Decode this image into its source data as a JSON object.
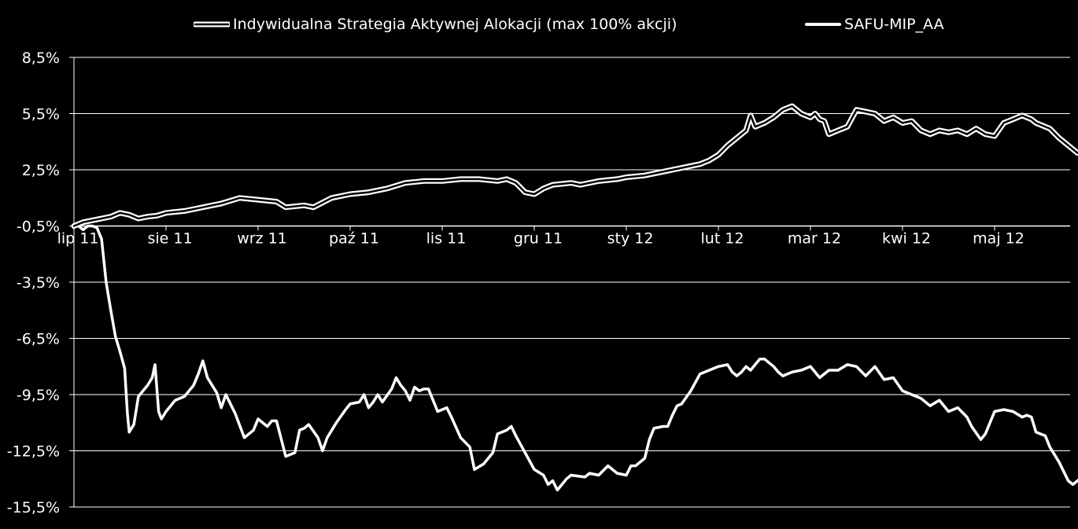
{
  "chart_data": {
    "type": "line",
    "title": "",
    "xlabel": "",
    "ylabel": "",
    "ylim": [
      -15.5,
      8.5
    ],
    "yticks": [
      "8,5%",
      "5,5%",
      "2,5%",
      "-0,5%",
      "-3,5%",
      "-6,5%",
      "-9,5%",
      "-12,5%",
      "-15,5%"
    ],
    "ytick_values": [
      8.5,
      5.5,
      2.5,
      -0.5,
      -3.5,
      -6.5,
      -9.5,
      -12.5,
      -15.5
    ],
    "xticks": [
      "lip 11",
      "sie 11",
      "wrz 11",
      "paź 11",
      "lis 11",
      "gru 11",
      "sty 12",
      "lut 12",
      "mar 12",
      "kwi 12",
      "maj 12"
    ],
    "x_axis_at": -0.5,
    "grid": "horizontal",
    "legend_position": "top",
    "background": "#000000",
    "series": [
      {
        "name": "Indywidualna Strategia Aktywnej Alokacji (max 100% akcji)",
        "style": "double-outline",
        "color": "#ffffff",
        "points": [
          [
            0.0,
            -0.5
          ],
          [
            0.1,
            -0.3
          ],
          [
            0.2,
            -0.2
          ],
          [
            0.3,
            -0.1
          ],
          [
            0.4,
            0.0
          ],
          [
            0.5,
            0.2
          ],
          [
            0.6,
            0.1
          ],
          [
            0.7,
            -0.1
          ],
          [
            0.8,
            0.0
          ],
          [
            0.9,
            0.05
          ],
          [
            1.0,
            0.2
          ],
          [
            1.2,
            0.3
          ],
          [
            1.4,
            0.5
          ],
          [
            1.6,
            0.7
          ],
          [
            1.8,
            1.0
          ],
          [
            2.0,
            0.9
          ],
          [
            2.2,
            0.8
          ],
          [
            2.3,
            0.5
          ],
          [
            2.5,
            0.6
          ],
          [
            2.6,
            0.5
          ],
          [
            2.8,
            1.0
          ],
          [
            3.0,
            1.2
          ],
          [
            3.2,
            1.3
          ],
          [
            3.4,
            1.5
          ],
          [
            3.6,
            1.8
          ],
          [
            3.8,
            1.9
          ],
          [
            4.0,
            1.9
          ],
          [
            4.2,
            2.0
          ],
          [
            4.4,
            2.0
          ],
          [
            4.6,
            1.9
          ],
          [
            4.7,
            2.0
          ],
          [
            4.8,
            1.8
          ],
          [
            4.9,
            1.3
          ],
          [
            5.0,
            1.2
          ],
          [
            5.1,
            1.5
          ],
          [
            5.2,
            1.7
          ],
          [
            5.4,
            1.8
          ],
          [
            5.5,
            1.7
          ],
          [
            5.7,
            1.9
          ],
          [
            5.9,
            2.0
          ],
          [
            6.0,
            2.1
          ],
          [
            6.2,
            2.2
          ],
          [
            6.4,
            2.4
          ],
          [
            6.6,
            2.6
          ],
          [
            6.8,
            2.8
          ],
          [
            6.9,
            3.0
          ],
          [
            7.0,
            3.3
          ],
          [
            7.1,
            3.8
          ],
          [
            7.2,
            4.2
          ],
          [
            7.3,
            4.6
          ],
          [
            7.35,
            5.4
          ],
          [
            7.4,
            4.8
          ],
          [
            7.5,
            5.0
          ],
          [
            7.6,
            5.3
          ],
          [
            7.7,
            5.7
          ],
          [
            7.8,
            5.9
          ],
          [
            7.9,
            5.5
          ],
          [
            8.0,
            5.3
          ],
          [
            8.05,
            5.5
          ],
          [
            8.1,
            5.2
          ],
          [
            8.15,
            5.1
          ],
          [
            8.2,
            4.4
          ],
          [
            8.3,
            4.6
          ],
          [
            8.4,
            4.8
          ],
          [
            8.5,
            5.7
          ],
          [
            8.6,
            5.6
          ],
          [
            8.7,
            5.5
          ],
          [
            8.8,
            5.1
          ],
          [
            8.9,
            5.3
          ],
          [
            9.0,
            5.0
          ],
          [
            9.1,
            5.1
          ],
          [
            9.2,
            4.6
          ],
          [
            9.3,
            4.4
          ],
          [
            9.4,
            4.6
          ],
          [
            9.5,
            4.5
          ],
          [
            9.6,
            4.6
          ],
          [
            9.7,
            4.4
          ],
          [
            9.8,
            4.7
          ],
          [
            9.9,
            4.4
          ],
          [
            10.0,
            4.3
          ],
          [
            10.1,
            5.0
          ],
          [
            10.2,
            5.2
          ],
          [
            10.3,
            5.4
          ],
          [
            10.4,
            5.2
          ],
          [
            10.45,
            5.0
          ],
          [
            10.6,
            4.7
          ],
          [
            10.7,
            4.2
          ],
          [
            10.8,
            3.8
          ],
          [
            10.9,
            3.4
          ],
          [
            11.0,
            3.6
          ],
          [
            11.05,
            3.9
          ],
          [
            11.1,
            3.4
          ],
          [
            11.2,
            3.5
          ],
          [
            11.3,
            3.8
          ],
          [
            11.35,
            4.0
          ],
          [
            11.45,
            3.7
          ],
          [
            11.5,
            3.8
          ]
        ]
      },
      {
        "name": "SAFU-MIP_AA",
        "style": "solid",
        "color": "#ffffff",
        "points": [
          [
            0.0,
            -0.5
          ],
          [
            0.05,
            -0.5
          ],
          [
            0.1,
            -0.7
          ],
          [
            0.15,
            -0.5
          ],
          [
            0.2,
            -0.5
          ],
          [
            0.25,
            -0.6
          ],
          [
            0.3,
            -1.2
          ],
          [
            0.35,
            -3.5
          ],
          [
            0.4,
            -5.0
          ],
          [
            0.45,
            -6.4
          ],
          [
            0.5,
            -7.2
          ],
          [
            0.55,
            -8.1
          ],
          [
            0.58,
            -10.5
          ],
          [
            0.6,
            -11.5
          ],
          [
            0.65,
            -11.1
          ],
          [
            0.7,
            -9.6
          ],
          [
            0.8,
            -9.0
          ],
          [
            0.85,
            -8.6
          ],
          [
            0.88,
            -7.9
          ],
          [
            0.92,
            -10.4
          ],
          [
            0.95,
            -10.8
          ],
          [
            1.0,
            -10.4
          ],
          [
            1.1,
            -9.8
          ],
          [
            1.2,
            -9.6
          ],
          [
            1.3,
            -9.0
          ],
          [
            1.35,
            -8.4
          ],
          [
            1.4,
            -7.7
          ],
          [
            1.45,
            -8.6
          ],
          [
            1.55,
            -9.4
          ],
          [
            1.6,
            -10.2
          ],
          [
            1.65,
            -9.5
          ],
          [
            1.75,
            -10.5
          ],
          [
            1.85,
            -11.8
          ],
          [
            1.95,
            -11.4
          ],
          [
            2.0,
            -10.8
          ],
          [
            2.1,
            -11.2
          ],
          [
            2.15,
            -10.9
          ],
          [
            2.2,
            -10.9
          ],
          [
            2.3,
            -12.8
          ],
          [
            2.4,
            -12.6
          ],
          [
            2.45,
            -11.4
          ],
          [
            2.5,
            -11.3
          ],
          [
            2.55,
            -11.1
          ],
          [
            2.65,
            -11.8
          ],
          [
            2.7,
            -12.5
          ],
          [
            2.75,
            -11.8
          ],
          [
            2.85,
            -11.0
          ],
          [
            2.95,
            -10.3
          ],
          [
            3.0,
            -10.0
          ],
          [
            3.1,
            -9.9
          ],
          [
            3.15,
            -9.5
          ],
          [
            3.2,
            -10.2
          ],
          [
            3.25,
            -9.9
          ],
          [
            3.3,
            -9.5
          ],
          [
            3.35,
            -9.9
          ],
          [
            3.45,
            -9.2
          ],
          [
            3.5,
            -8.6
          ],
          [
            3.55,
            -9.0
          ],
          [
            3.6,
            -9.3
          ],
          [
            3.65,
            -9.8
          ],
          [
            3.7,
            -9.1
          ],
          [
            3.75,
            -9.3
          ],
          [
            3.8,
            -9.2
          ],
          [
            3.85,
            -9.2
          ],
          [
            3.95,
            -10.4
          ],
          [
            4.05,
            -10.2
          ],
          [
            4.1,
            -10.7
          ],
          [
            4.2,
            -11.8
          ],
          [
            4.3,
            -12.3
          ],
          [
            4.35,
            -13.5
          ],
          [
            4.45,
            -13.2
          ],
          [
            4.55,
            -12.6
          ],
          [
            4.6,
            -11.6
          ],
          [
            4.7,
            -11.4
          ],
          [
            4.75,
            -11.2
          ],
          [
            4.8,
            -11.7
          ],
          [
            4.9,
            -12.6
          ],
          [
            5.0,
            -13.5
          ],
          [
            5.1,
            -13.8
          ],
          [
            5.15,
            -14.3
          ],
          [
            5.2,
            -14.1
          ],
          [
            5.25,
            -14.6
          ],
          [
            5.35,
            -14.0
          ],
          [
            5.4,
            -13.8
          ],
          [
            5.55,
            -13.9
          ],
          [
            5.6,
            -13.7
          ],
          [
            5.7,
            -13.8
          ],
          [
            5.8,
            -13.3
          ],
          [
            5.9,
            -13.7
          ],
          [
            6.0,
            -13.8
          ],
          [
            6.05,
            -13.3
          ],
          [
            6.1,
            -13.3
          ],
          [
            6.2,
            -12.9
          ],
          [
            6.25,
            -11.9
          ],
          [
            6.3,
            -11.3
          ],
          [
            6.4,
            -11.2
          ],
          [
            6.45,
            -11.2
          ],
          [
            6.5,
            -10.6
          ],
          [
            6.55,
            -10.1
          ],
          [
            6.6,
            -10.0
          ],
          [
            6.7,
            -9.3
          ],
          [
            6.8,
            -8.4
          ],
          [
            6.9,
            -8.2
          ],
          [
            7.0,
            -8.0
          ],
          [
            7.1,
            -7.9
          ],
          [
            7.15,
            -8.3
          ],
          [
            7.2,
            -8.5
          ],
          [
            7.25,
            -8.3
          ],
          [
            7.3,
            -8.0
          ],
          [
            7.35,
            -8.2
          ],
          [
            7.45,
            -7.6
          ],
          [
            7.5,
            -7.6
          ],
          [
            7.6,
            -8.0
          ],
          [
            7.65,
            -8.3
          ],
          [
            7.7,
            -8.5
          ],
          [
            7.8,
            -8.3
          ],
          [
            7.9,
            -8.2
          ],
          [
            8.0,
            -8.0
          ],
          [
            8.1,
            -8.6
          ],
          [
            8.2,
            -8.2
          ],
          [
            8.3,
            -8.2
          ],
          [
            8.4,
            -7.9
          ],
          [
            8.5,
            -8.0
          ],
          [
            8.6,
            -8.5
          ],
          [
            8.7,
            -8.0
          ],
          [
            8.8,
            -8.7
          ],
          [
            8.9,
            -8.6
          ],
          [
            9.0,
            -9.3
          ],
          [
            9.1,
            -9.5
          ],
          [
            9.2,
            -9.7
          ],
          [
            9.3,
            -10.1
          ],
          [
            9.4,
            -9.8
          ],
          [
            9.5,
            -10.4
          ],
          [
            9.6,
            -10.2
          ],
          [
            9.7,
            -10.7
          ],
          [
            9.75,
            -11.2
          ],
          [
            9.85,
            -11.9
          ],
          [
            9.9,
            -11.6
          ],
          [
            10.0,
            -10.4
          ],
          [
            10.1,
            -10.3
          ],
          [
            10.2,
            -10.4
          ],
          [
            10.3,
            -10.7
          ],
          [
            10.35,
            -10.6
          ],
          [
            10.4,
            -10.7
          ],
          [
            10.45,
            -11.5
          ],
          [
            10.55,
            -11.7
          ],
          [
            10.6,
            -12.3
          ],
          [
            10.7,
            -13.1
          ],
          [
            10.8,
            -14.1
          ],
          [
            10.85,
            -14.3
          ],
          [
            10.95,
            -13.9
          ],
          [
            11.0,
            -13.7
          ],
          [
            11.05,
            -13.5
          ],
          [
            11.1,
            -14.7
          ],
          [
            11.2,
            -14.6
          ],
          [
            11.3,
            -14.3
          ],
          [
            11.35,
            -14.3
          ],
          [
            11.4,
            -13.7
          ],
          [
            11.45,
            -14.3
          ],
          [
            11.5,
            -13.9
          ]
        ]
      }
    ]
  }
}
